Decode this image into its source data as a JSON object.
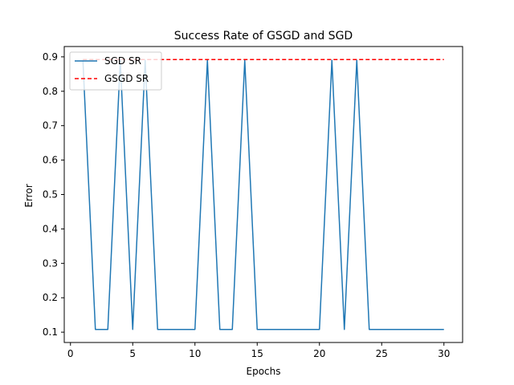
{
  "chart_data": {
    "type": "line",
    "title": "Success Rate of GSGD and SGD",
    "xlabel": "Epochs",
    "ylabel": "Error",
    "xlim": [
      -0.5,
      31.5
    ],
    "ylim": [
      0.07,
      0.93
    ],
    "xticks": [
      "0",
      "5",
      "10",
      "15",
      "20",
      "25",
      "30"
    ],
    "yticks": [
      "0.1",
      "0.2",
      "0.3",
      "0.4",
      "0.5",
      "0.6",
      "0.7",
      "0.8",
      "0.9"
    ],
    "grid": false,
    "legend_position": "top-left",
    "series": [
      {
        "name": "SGD SR",
        "style": "solid",
        "color": "#1f77b4",
        "x": [
          1,
          2,
          3,
          4,
          5,
          6,
          7,
          8,
          9,
          10,
          11,
          12,
          13,
          14,
          15,
          16,
          17,
          18,
          19,
          20,
          21,
          22,
          23,
          24,
          25,
          26,
          27,
          28,
          29,
          30
        ],
        "y": [
          0.89,
          0.108,
          0.108,
          0.89,
          0.108,
          0.89,
          0.108,
          0.108,
          0.108,
          0.108,
          0.89,
          0.108,
          0.108,
          0.89,
          0.108,
          0.108,
          0.108,
          0.108,
          0.108,
          0.108,
          0.89,
          0.108,
          0.89,
          0.108,
          0.108,
          0.108,
          0.108,
          0.108,
          0.108,
          0.108
        ]
      },
      {
        "name": "GSGD SR",
        "style": "dashed",
        "color": "#ff0000",
        "x": [
          1,
          30
        ],
        "y": [
          0.892,
          0.892
        ]
      }
    ]
  }
}
